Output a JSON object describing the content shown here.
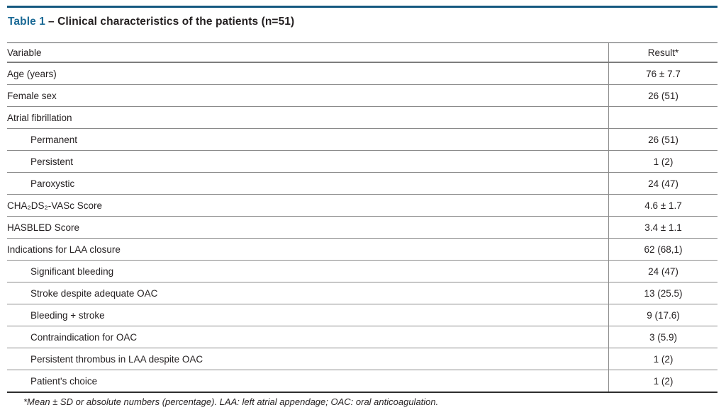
{
  "title": {
    "label": "Table 1",
    "text": "– Clinical characteristics of the patients (n=51)"
  },
  "colors": {
    "top_rule": "#15597f",
    "table_label_blue": "#1c6a96",
    "body_text": "#231f20",
    "row_divider": "#8a8a8a"
  },
  "table": {
    "columns": [
      "Variable",
      "Result*"
    ],
    "rows": [
      {
        "label": "Age (years)",
        "value": "76 ± 7.7",
        "indent": 0
      },
      {
        "label": "Female sex",
        "value": "26 (51)",
        "indent": 0
      },
      {
        "label": "Atrial fibrillation",
        "value": "",
        "indent": 0
      },
      {
        "label": "Permanent",
        "value": "26 (51)",
        "indent": 1
      },
      {
        "label": "Persistent",
        "value": "1 (2)",
        "indent": 1
      },
      {
        "label": "Paroxystic",
        "value": "24 (47)",
        "indent": 1
      },
      {
        "label": "CHA₂DS₂-VASc Score",
        "value": "4.6 ± 1.7",
        "indent": 0
      },
      {
        "label": "HASBLED Score",
        "value": "3.4 ± 1.1",
        "indent": 0
      },
      {
        "label": "Indications for LAA closure",
        "value": "62 (68,1)",
        "indent": 0
      },
      {
        "label": "Significant bleeding",
        "value": "24 (47)",
        "indent": 1
      },
      {
        "label": "Stroke despite adequate OAC",
        "value": "13 (25.5)",
        "indent": 1
      },
      {
        "label": "Bleeding + stroke",
        "value": "9 (17.6)",
        "indent": 1
      },
      {
        "label": "Contraindication for OAC",
        "value": "3 (5.9)",
        "indent": 1
      },
      {
        "label": "Persistent thrombus in LAA despite OAC",
        "value": "1 (2)",
        "indent": 1
      },
      {
        "label": "Patient's choice",
        "value": "1 (2)",
        "indent": 1
      }
    ]
  },
  "footnote": "*Mean ± SD or absolute numbers (percentage). LAA: left atrial appendage; OAC: oral anticoagulation."
}
